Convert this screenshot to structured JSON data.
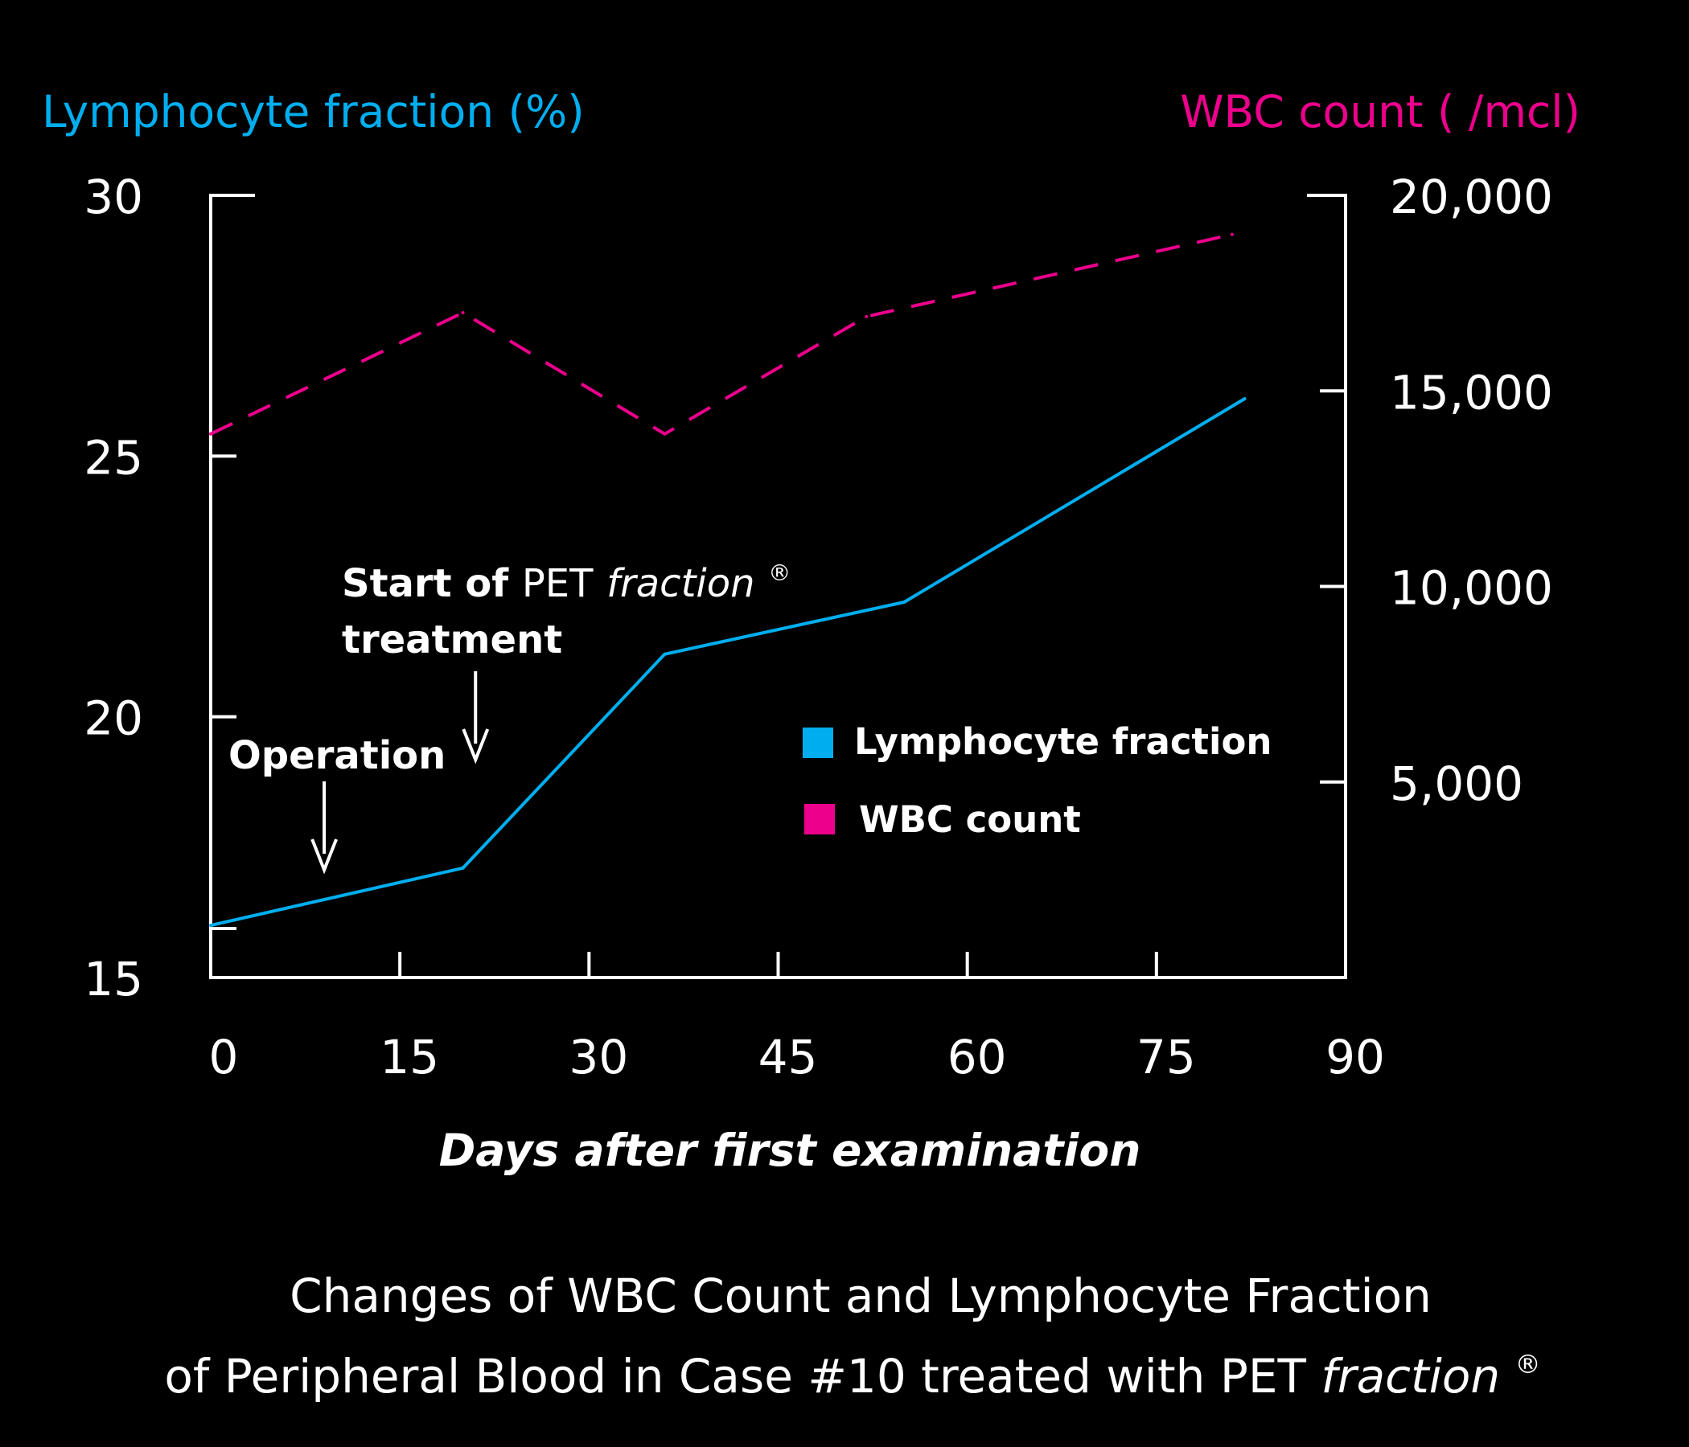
{
  "chart_data": {
    "type": "line",
    "caption_line1": "Changes of WBC Count and Lymphocyte Fraction",
    "caption_line2_prefix": "of Peripheral Blood in Case #10 treated with PET ",
    "caption_line2_italic": "fraction",
    "caption_line2_mark": "®",
    "xlabel": "Days after first examination",
    "ylabel_left": "Lymphocyte fraction (%)",
    "ylabel_right": "WBC count ( /mcl)",
    "xlim": [
      0,
      90
    ],
    "ylim_left": [
      15,
      30
    ],
    "ylim_right": [
      0,
      20000
    ],
    "x_ticks": [
      "0",
      "15",
      "30",
      "45",
      "60",
      "75",
      "90"
    ],
    "y_left_ticks": [
      "15",
      "20",
      "25",
      "30"
    ],
    "y_right_ticks": [
      "5,000",
      "10,000",
      "15,000",
      "20,000"
    ],
    "colors": {
      "lymphocyte": "#00aeef",
      "wbc": "#ec008c",
      "background": "#000000",
      "text": "#ffffff"
    },
    "series": [
      {
        "name": "Lymphocyte fraction",
        "axis": "left",
        "style": "solid",
        "x": [
          0,
          20,
          36,
          55,
          82
        ],
        "values": [
          16.0,
          17.1,
          21.2,
          22.2,
          26.1
        ]
      },
      {
        "name": "WBC count",
        "axis": "right",
        "style": "dashed",
        "x": [
          0,
          20,
          36,
          52,
          81
        ],
        "values": [
          13900,
          17000,
          13900,
          16900,
          19000
        ]
      }
    ],
    "legend": {
      "placement": "center-right inside plot",
      "entries": [
        "Lymphocyte fraction",
        "WBC count"
      ]
    },
    "annotations": {
      "operation": {
        "label": "Operation",
        "x": 9
      },
      "treatment": {
        "label_bold": "Start of",
        "label_regular": "PET",
        "label_italic": "fraction",
        "label_mark": "®",
        "label_line2": "treatment",
        "x": 21
      }
    }
  }
}
